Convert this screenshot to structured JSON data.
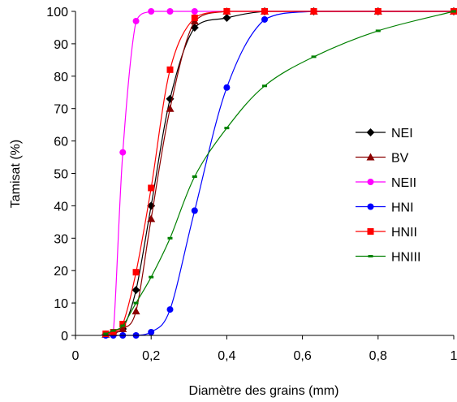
{
  "chart_data": {
    "type": "line",
    "xlabel": "Diamètre des grains (mm)",
    "ylabel": "Tamisat (%)",
    "xlim": [
      0,
      1
    ],
    "ylim": [
      0,
      100
    ],
    "x_ticks": [
      0,
      0.2,
      0.4,
      0.6,
      0.8,
      1
    ],
    "x_tick_labels": [
      "0",
      "0,2",
      "0,4",
      "0,6",
      "0,8",
      "1"
    ],
    "y_ticks": [
      0,
      10,
      20,
      30,
      40,
      50,
      60,
      70,
      80,
      90,
      100
    ],
    "y_tick_labels": [
      "0",
      "10",
      "20",
      "30",
      "40",
      "50",
      "60",
      "70",
      "80",
      "90",
      "100"
    ],
    "grid": false,
    "legend_position": "right",
    "series": [
      {
        "name": "NEI",
        "color": "#000000",
        "marker": "diamond",
        "points": [
          [
            0.08,
            0.3
          ],
          [
            0.1,
            0.8
          ],
          [
            0.125,
            2
          ],
          [
            0.16,
            14
          ],
          [
            0.2,
            40
          ],
          [
            0.25,
            73
          ],
          [
            0.315,
            95
          ],
          [
            0.4,
            98
          ],
          [
            0.5,
            100
          ],
          [
            0.63,
            100
          ],
          [
            0.8,
            100
          ],
          [
            1,
            100
          ]
        ]
      },
      {
        "name": "BV",
        "color": "#8B0000",
        "marker": "triangle",
        "points": [
          [
            0.08,
            0.3
          ],
          [
            0.1,
            0.8
          ],
          [
            0.125,
            2
          ],
          [
            0.16,
            7.5
          ],
          [
            0.2,
            36
          ],
          [
            0.25,
            70
          ],
          [
            0.315,
            97
          ],
          [
            0.4,
            100
          ],
          [
            0.5,
            100
          ],
          [
            0.63,
            100
          ],
          [
            0.8,
            100
          ],
          [
            1,
            100
          ]
        ]
      },
      {
        "name": "NEII",
        "color": "#FF00FF",
        "marker": "circle",
        "points": [
          [
            0.08,
            0.3
          ],
          [
            0.1,
            1
          ],
          [
            0.125,
            56.5
          ],
          [
            0.16,
            97
          ],
          [
            0.2,
            100
          ],
          [
            0.25,
            100
          ],
          [
            0.315,
            100
          ],
          [
            0.4,
            100
          ],
          [
            0.5,
            100
          ],
          [
            0.63,
            100
          ],
          [
            0.8,
            100
          ],
          [
            1,
            100
          ]
        ]
      },
      {
        "name": "HNI",
        "color": "#0000FF",
        "marker": "circle",
        "points": [
          [
            0.08,
            0
          ],
          [
            0.1,
            0
          ],
          [
            0.125,
            0
          ],
          [
            0.16,
            0
          ],
          [
            0.2,
            1
          ],
          [
            0.25,
            8
          ],
          [
            0.315,
            38.5
          ],
          [
            0.4,
            76.5
          ],
          [
            0.5,
            97.5
          ],
          [
            0.63,
            100
          ],
          [
            0.8,
            100
          ],
          [
            1,
            100
          ]
        ]
      },
      {
        "name": "HNII",
        "color": "#FF0000",
        "marker": "square",
        "points": [
          [
            0.08,
            0.5
          ],
          [
            0.1,
            1
          ],
          [
            0.125,
            3.5
          ],
          [
            0.16,
            19.5
          ],
          [
            0.2,
            45.5
          ],
          [
            0.25,
            82
          ],
          [
            0.315,
            98
          ],
          [
            0.4,
            100
          ],
          [
            0.5,
            100
          ],
          [
            0.63,
            100
          ],
          [
            0.8,
            100
          ],
          [
            1,
            100
          ]
        ]
      },
      {
        "name": "HNIII",
        "color": "#008000",
        "marker": "dash",
        "points": [
          [
            0.08,
            0.5
          ],
          [
            0.1,
            1.5
          ],
          [
            0.125,
            3
          ],
          [
            0.16,
            10
          ],
          [
            0.2,
            18
          ],
          [
            0.25,
            30
          ],
          [
            0.315,
            49
          ],
          [
            0.4,
            64
          ],
          [
            0.5,
            77
          ],
          [
            0.63,
            86
          ],
          [
            0.8,
            94
          ],
          [
            1,
            100
          ]
        ]
      }
    ]
  }
}
